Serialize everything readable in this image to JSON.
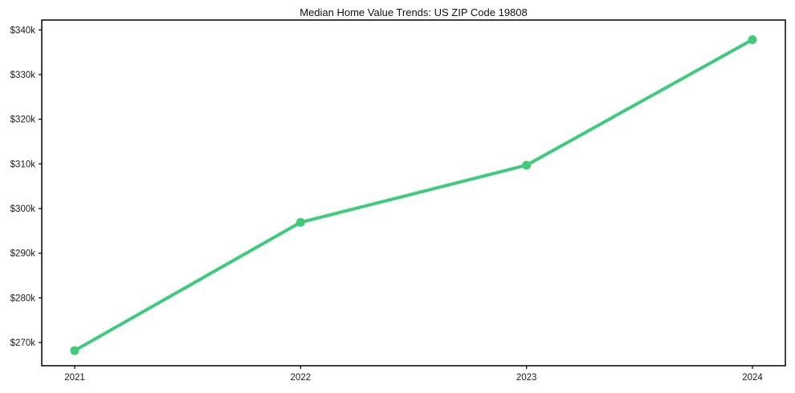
{
  "chart_data": {
    "type": "line",
    "title": "Median Home Value Trends: US ZIP Code 19808",
    "categories": [
      "2021",
      "2022",
      "2023",
      "2024"
    ],
    "series": [
      {
        "name": "Median Home Value",
        "values": [
          268200,
          296900,
          309700,
          337800
        ]
      }
    ],
    "xlabel": "",
    "ylabel": "",
    "ylim": [
      264800,
      342200
    ],
    "y_ticks": [
      {
        "value": 270000,
        "label": "$270k"
      },
      {
        "value": 280000,
        "label": "$280k"
      },
      {
        "value": 290000,
        "label": "$290k"
      },
      {
        "value": 300000,
        "label": "$300k"
      },
      {
        "value": 310000,
        "label": "$310k"
      },
      {
        "value": 320000,
        "label": "$320k"
      },
      {
        "value": 330000,
        "label": "$330k"
      },
      {
        "value": 340000,
        "label": "$340k"
      }
    ],
    "grid": false,
    "legend": false,
    "marker": "circle",
    "colors": {
      "line": "#3ecb7c",
      "marker": "#3ecb7c",
      "axis": "#000000",
      "tick_text": "#1a1a1a",
      "title_text": "#111111",
      "background": "#ffffff"
    }
  }
}
